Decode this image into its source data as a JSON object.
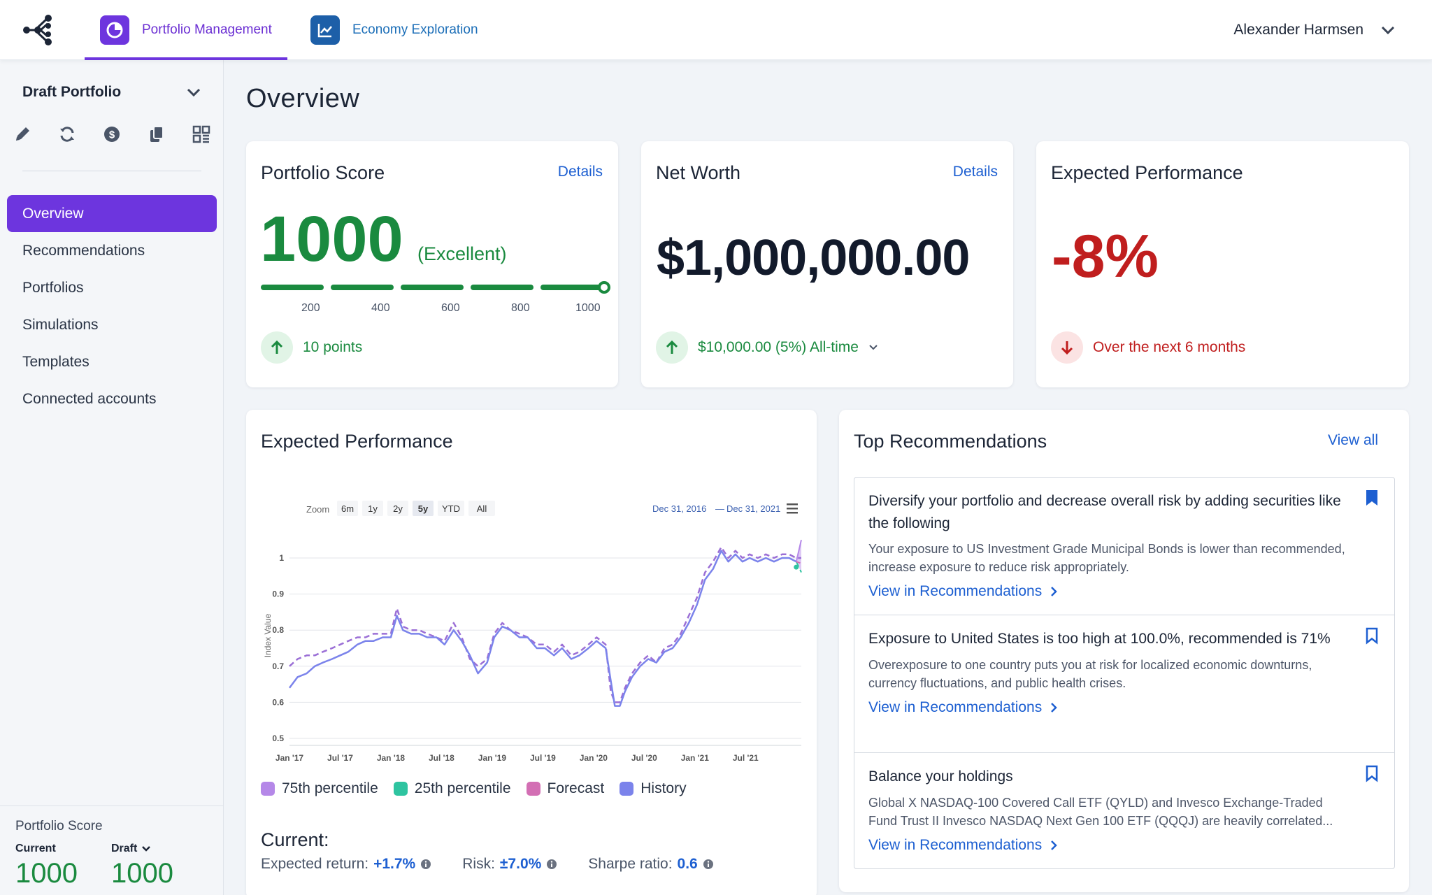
{
  "apps": {
    "active_label": "Portfolio Management",
    "inactive_label": "Economy Exploration"
  },
  "user": {
    "name": "Alexander Harmsen"
  },
  "sidebar": {
    "portfolio_name": "Draft Portfolio",
    "nav": [
      {
        "label": "Overview",
        "active": true
      },
      {
        "label": "Recommendations"
      },
      {
        "label": "Portfolios"
      },
      {
        "label": "Simulations"
      },
      {
        "label": "Templates"
      },
      {
        "label": "Connected accounts"
      }
    ],
    "score": {
      "label": "Portfolio Score",
      "current_label": "Current",
      "current_value": "1000",
      "draft_label": "Draft",
      "draft_value": "1000"
    }
  },
  "page": {
    "title": "Overview"
  },
  "score_card": {
    "title": "Portfolio Score",
    "link": "Details",
    "value": "1000",
    "rating": "(Excellent)",
    "ticks": [
      "200",
      "400",
      "600",
      "800",
      "1000"
    ],
    "level": 1.0,
    "delta": "10 points"
  },
  "worth_card": {
    "title": "Net Worth",
    "link": "Details",
    "value": "$1,000,000.00",
    "delta": "$10,000.00 (5%) All-time"
  },
  "perf_card": {
    "title": "Expected Performance",
    "value": "-8%",
    "delta": "Over the next 6 months"
  },
  "chart_card": {
    "title": "Expected Performance",
    "zoom_label": "Zoom",
    "zoom_options": [
      "6m",
      "1y",
      "2y",
      "5y",
      "YTD",
      "All"
    ],
    "zoom_selected": "5y",
    "range_from": "Dec 31, 2016",
    "range_sep": "—",
    "range_to": "Dec 31, 2021",
    "current_heading": "Current:",
    "metrics": [
      {
        "label": "Expected return:",
        "value": "+1.7%"
      },
      {
        "label": "Risk:",
        "value": "±7.0%"
      },
      {
        "label": "Sharpe ratio:",
        "value": "0.6"
      }
    ]
  },
  "chart_data": {
    "type": "line",
    "ylabel": "Index Value",
    "ylim": [
      0.5,
      1.0
    ],
    "yticks": [
      "0.5",
      "0.6",
      "0.7",
      "0.8",
      "0.9",
      "1"
    ],
    "xticks": [
      "Jan '17",
      "Jul '17",
      "Jan '18",
      "Jul '18",
      "Jan '19",
      "Jul '19",
      "Jan '20",
      "Jul '20",
      "Jan '21",
      "Jul '21"
    ],
    "x_range": [
      2017.0,
      2022.05
    ],
    "grid": true,
    "legend_position": "bottom",
    "series": [
      {
        "name": "History",
        "color": "#7b83eb",
        "dash": false,
        "x": [
          2017.0,
          2017.08,
          2017.17,
          2017.25,
          2017.33,
          2017.42,
          2017.5,
          2017.58,
          2017.67,
          2017.75,
          2017.83,
          2017.92,
          2018.0,
          2018.06,
          2018.12,
          2018.2,
          2018.28,
          2018.36,
          2018.45,
          2018.53,
          2018.62,
          2018.7,
          2018.78,
          2018.86,
          2018.95,
          2019.02,
          2019.1,
          2019.18,
          2019.27,
          2019.35,
          2019.44,
          2019.52,
          2019.61,
          2019.69,
          2019.78,
          2019.86,
          2019.95,
          2020.03,
          2020.12,
          2020.17,
          2020.21,
          2020.26,
          2020.31,
          2020.38,
          2020.46,
          2020.54,
          2020.62,
          2020.7,
          2020.78,
          2020.86,
          2020.94,
          2021.02,
          2021.1,
          2021.18,
          2021.26,
          2021.33,
          2021.4,
          2021.47,
          2021.54,
          2021.62,
          2021.7,
          2021.78,
          2021.86,
          2021.93,
          2022.0
        ],
        "y": [
          0.64,
          0.67,
          0.68,
          0.7,
          0.71,
          0.72,
          0.73,
          0.74,
          0.76,
          0.77,
          0.77,
          0.78,
          0.78,
          0.84,
          0.8,
          0.79,
          0.79,
          0.78,
          0.78,
          0.76,
          0.8,
          0.77,
          0.73,
          0.68,
          0.71,
          0.78,
          0.81,
          0.8,
          0.78,
          0.78,
          0.75,
          0.75,
          0.73,
          0.75,
          0.72,
          0.73,
          0.75,
          0.77,
          0.75,
          0.66,
          0.59,
          0.59,
          0.63,
          0.67,
          0.7,
          0.72,
          0.71,
          0.74,
          0.75,
          0.78,
          0.82,
          0.87,
          0.94,
          0.97,
          1.02,
          0.99,
          1.01,
          0.99,
          1.0,
          0.99,
          1.0,
          0.99,
          1.0,
          1.0,
          0.99
        ]
      },
      {
        "name": "Forecast",
        "color": "#9b6fd6",
        "dash": true,
        "x": [
          2017.0,
          2017.08,
          2017.17,
          2017.25,
          2017.33,
          2017.42,
          2017.5,
          2017.58,
          2017.67,
          2017.75,
          2017.83,
          2017.92,
          2018.0,
          2018.06,
          2018.12,
          2018.2,
          2018.28,
          2018.36,
          2018.45,
          2018.53,
          2018.62,
          2018.7,
          2018.78,
          2018.86,
          2018.95,
          2019.02,
          2019.1,
          2019.18,
          2019.27,
          2019.35,
          2019.44,
          2019.52,
          2019.61,
          2019.69,
          2019.78,
          2019.86,
          2019.95,
          2020.03,
          2020.12,
          2020.17,
          2020.21,
          2020.26,
          2020.31,
          2020.38,
          2020.46,
          2020.54,
          2020.62,
          2020.7,
          2020.78,
          2020.86,
          2020.94,
          2021.02,
          2021.1,
          2021.18,
          2021.26,
          2021.33,
          2021.4,
          2021.47,
          2021.54,
          2021.62,
          2021.7,
          2021.78,
          2021.86,
          2021.93,
          2022.0,
          2022.05
        ],
        "y": [
          0.7,
          0.72,
          0.73,
          0.73,
          0.74,
          0.75,
          0.76,
          0.77,
          0.78,
          0.78,
          0.79,
          0.79,
          0.79,
          0.86,
          0.81,
          0.8,
          0.8,
          0.79,
          0.78,
          0.77,
          0.82,
          0.78,
          0.72,
          0.7,
          0.72,
          0.79,
          0.82,
          0.8,
          0.79,
          0.78,
          0.76,
          0.76,
          0.74,
          0.76,
          0.73,
          0.74,
          0.76,
          0.78,
          0.76,
          0.63,
          0.6,
          0.6,
          0.64,
          0.68,
          0.71,
          0.73,
          0.71,
          0.75,
          0.76,
          0.79,
          0.84,
          0.89,
          0.96,
          0.99,
          1.03,
          1.0,
          1.02,
          1.0,
          1.01,
          1.0,
          1.01,
          1.0,
          1.01,
          1.01,
          1.0,
          1.0
        ]
      },
      {
        "name": "75th percentile",
        "color": "#b588e8",
        "dash": false,
        "x": [
          2022.0,
          2022.05
        ],
        "y": [
          1.01,
          1.05
        ]
      },
      {
        "name": "25th percentile",
        "color": "#2ec4a0",
        "dash": true,
        "x": [
          2022.0,
          2022.05
        ],
        "y": [
          0.975,
          0.96
        ]
      }
    ]
  },
  "recs_card": {
    "title": "Top Recommendations",
    "link": "View all",
    "items": [
      {
        "title": "Diversify your portfolio and decrease overall risk by adding securities like the following",
        "desc": "Your exposure to US Investment Grade Municipal Bonds is lower than recommended, increase exposure to reduce risk appropriately.",
        "link": "View in Recommendations",
        "bookmarked": true
      },
      {
        "title": "Exposure to United States is too high at 100.0%, recommended is 71%",
        "desc": "Overexposure to one country puts you at risk for localized economic downturns, currency fluctuations, and public health crises.",
        "link": "View in Recommendations",
        "bookmarked": false
      },
      {
        "title": "Balance your holdings",
        "desc": "Global X NASDAQ-100 Covered Call ETF (QYLD) and Invesco Exchange-Traded Fund Trust II Invesco NASDAQ Next Gen 100 ETF (QQQJ) are heavily correlated...",
        "link": "View in Recommendations",
        "bookmarked": false
      }
    ]
  },
  "colors": {
    "accent": "#6d35de",
    "positive": "#1a8a3f",
    "negative": "#c01e1e",
    "link": "#1d5fd1"
  }
}
